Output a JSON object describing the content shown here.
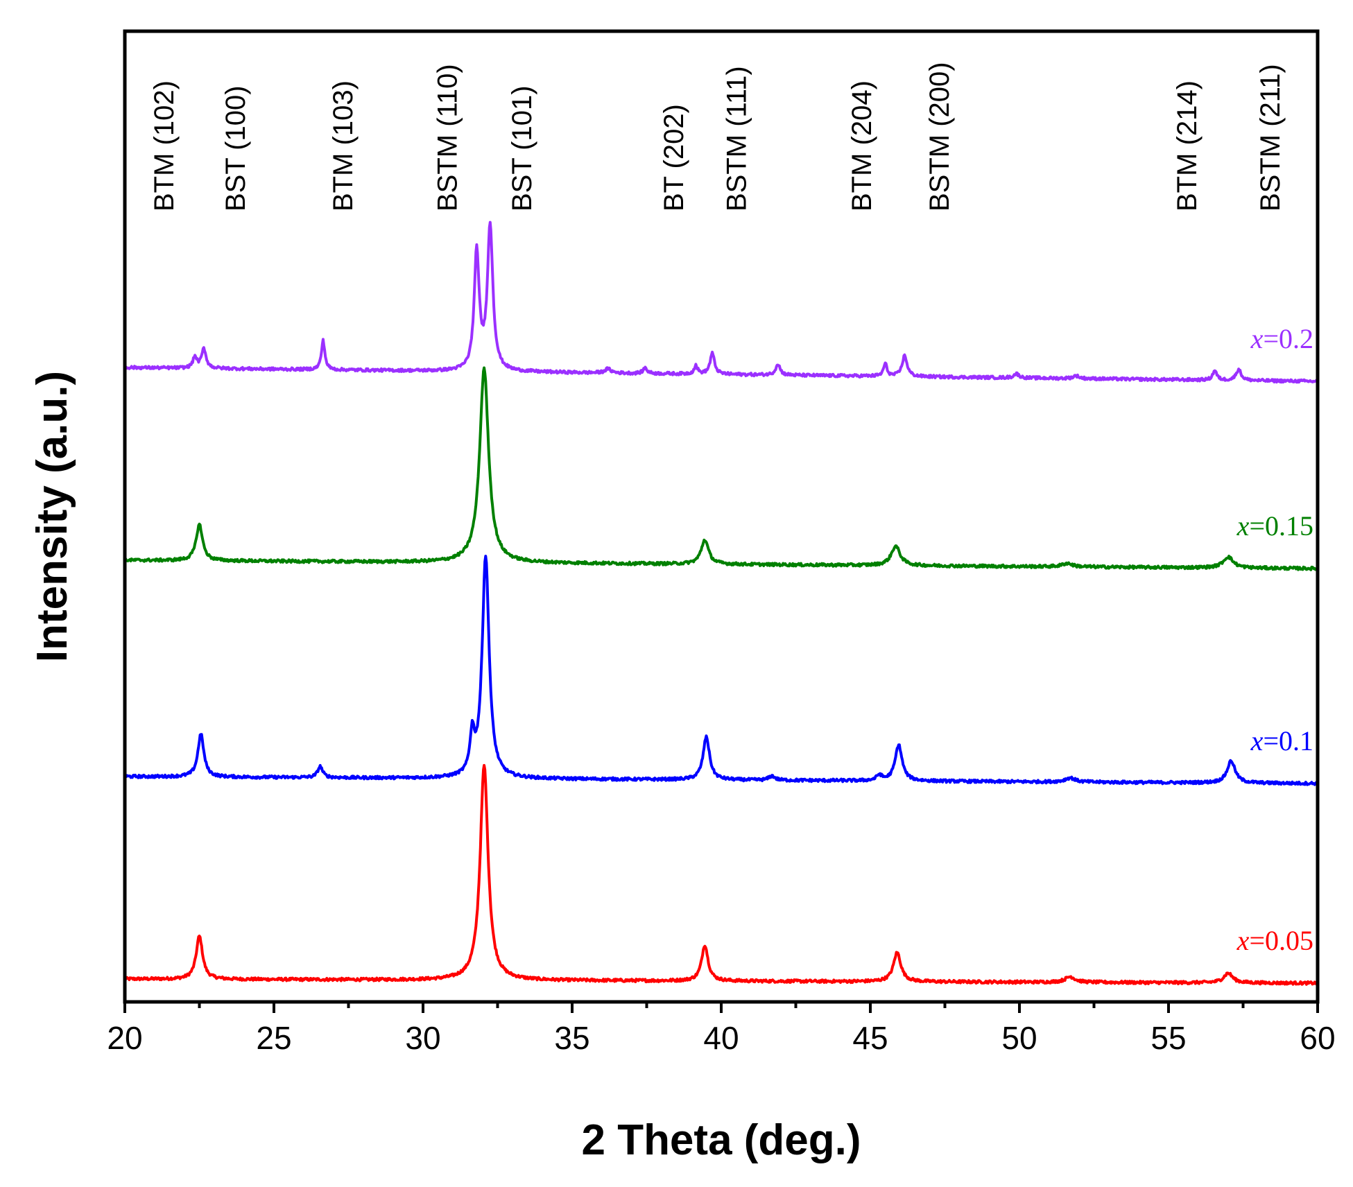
{
  "chart_data": {
    "type": "line",
    "title": "",
    "xlabel": "2 Theta (deg.)",
    "ylabel": "Intensity (a.u.)",
    "xlim": [
      20,
      60
    ],
    "xticks": [
      20,
      25,
      30,
      35,
      40,
      45,
      50,
      55,
      60
    ],
    "xtick_labels": [
      "20",
      "25",
      "30",
      "35",
      "40",
      "45",
      "50",
      "55",
      "60"
    ],
    "yticks_shown": false,
    "grid": false,
    "series": [
      {
        "name": "x=0.05",
        "label_var": "x",
        "label_rest": "=0.05",
        "color": "#ff0000",
        "offset": 0,
        "baseline_start": 8,
        "baseline_end": 2,
        "peaks": [
          {
            "x": 22.5,
            "h": 62,
            "w": 0.13
          },
          {
            "x": 32.05,
            "h": 310,
            "w": 0.16
          },
          {
            "x": 39.45,
            "h": 52,
            "w": 0.13
          },
          {
            "x": 45.9,
            "h": 42,
            "w": 0.15
          },
          {
            "x": 51.7,
            "h": 8,
            "w": 0.2
          },
          {
            "x": 57.0,
            "h": 14,
            "w": 0.18
          }
        ]
      },
      {
        "name": "x=0.1",
        "label_var": "x",
        "label_rest": "=0.1",
        "color": "#0000ff",
        "offset": 290,
        "baseline_start": 10,
        "baseline_end": 0,
        "peaks": [
          {
            "x": 22.55,
            "h": 62,
            "w": 0.12
          },
          {
            "x": 26.55,
            "h": 16,
            "w": 0.1
          },
          {
            "x": 31.65,
            "h": 55,
            "w": 0.09
          },
          {
            "x": 32.1,
            "h": 320,
            "w": 0.14
          },
          {
            "x": 39.5,
            "h": 62,
            "w": 0.13
          },
          {
            "x": 41.7,
            "h": 6,
            "w": 0.12
          },
          {
            "x": 45.3,
            "h": 8,
            "w": 0.1
          },
          {
            "x": 45.95,
            "h": 52,
            "w": 0.14
          },
          {
            "x": 51.7,
            "h": 6,
            "w": 0.2
          },
          {
            "x": 57.1,
            "h": 32,
            "w": 0.16
          }
        ]
      },
      {
        "name": "x=0.15",
        "label_var": "x",
        "label_rest": "=0.15",
        "color": "#008000",
        "offset": 600,
        "baseline_start": 12,
        "baseline_end": 0,
        "peaks": [
          {
            "x": 22.5,
            "h": 52,
            "w": 0.13
          },
          {
            "x": 32.05,
            "h": 280,
            "w": 0.18
          },
          {
            "x": 39.45,
            "h": 35,
            "w": 0.15
          },
          {
            "x": 45.85,
            "h": 28,
            "w": 0.18
          },
          {
            "x": 51.6,
            "h": 5,
            "w": 0.2
          },
          {
            "x": 57.0,
            "h": 16,
            "w": 0.2
          }
        ]
      },
      {
        "name": "x=0.2",
        "label_var": "x",
        "label_rest": "=0.2",
        "color": "#9b30ff",
        "offset": 870,
        "baseline_start": 20,
        "baseline_end": 0,
        "peaks": [
          {
            "x": 22.35,
            "h": 16,
            "w": 0.08
          },
          {
            "x": 22.65,
            "h": 28,
            "w": 0.09
          },
          {
            "x": 26.65,
            "h": 42,
            "w": 0.07
          },
          {
            "x": 31.8,
            "h": 170,
            "w": 0.1
          },
          {
            "x": 32.25,
            "h": 208,
            "w": 0.11
          },
          {
            "x": 36.2,
            "h": 6,
            "w": 0.12
          },
          {
            "x": 37.45,
            "h": 8,
            "w": 0.08
          },
          {
            "x": 39.15,
            "h": 12,
            "w": 0.07
          },
          {
            "x": 39.7,
            "h": 30,
            "w": 0.09
          },
          {
            "x": 41.9,
            "h": 16,
            "w": 0.09
          },
          {
            "x": 45.5,
            "h": 18,
            "w": 0.07
          },
          {
            "x": 46.15,
            "h": 30,
            "w": 0.1
          },
          {
            "x": 49.9,
            "h": 6,
            "w": 0.1
          },
          {
            "x": 51.9,
            "h": 4,
            "w": 0.12
          },
          {
            "x": 56.55,
            "h": 14,
            "w": 0.08
          },
          {
            "x": 57.35,
            "h": 16,
            "w": 0.1
          }
        ]
      }
    ],
    "annotations": [
      {
        "text": "BTM  (102)",
        "x": 21.3
      },
      {
        "text": "BST  (100)",
        "x": 23.7
      },
      {
        "text": "BTM  (103)",
        "x": 27.3
      },
      {
        "text": "BSTM  (110)",
        "x": 30.8
      },
      {
        "text": "BST  (101)",
        "x": 33.3
      },
      {
        "text": "BT  (202)",
        "x": 38.4
      },
      {
        "text": "BSTM  (111)",
        "x": 40.5
      },
      {
        "text": "BTM  (204)",
        "x": 44.7
      },
      {
        "text": "BSTM  (200)",
        "x": 47.3
      },
      {
        "text": "BTM  (214)",
        "x": 55.6
      },
      {
        "text": "BSTM  (211)",
        "x": 58.4
      }
    ]
  }
}
